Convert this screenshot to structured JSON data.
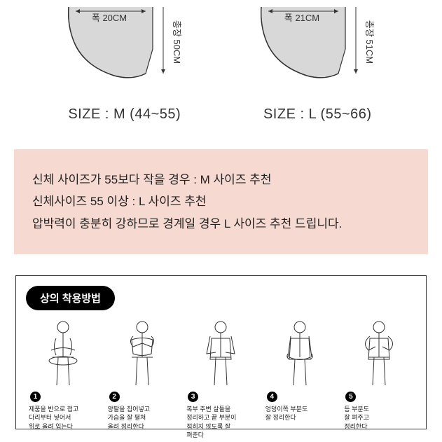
{
  "diagrams": {
    "left": {
      "width_label": "폭 20CM",
      "length_label": "총장 50CM",
      "size_text": "SIZE : M (44~55)"
    },
    "right": {
      "width_label": "폭 21CM",
      "length_label": "총장 51CM",
      "size_text": "SIZE : L (55~66)"
    },
    "stroke_color": "#333333",
    "fill_color": "#d8d8d8",
    "label_fontsize": 13
  },
  "recommendation": {
    "line1": "신체 사이즈가 55보다 작을 경우 : M 사이즈 추천",
    "line2": "신체사이즈 55 이상 : L 사이즈 추천",
    "line3": "압박력이 충분히 강하므로 경계일 경우 L 사이즈 추천 드립니다.",
    "bg_color": "#f6d9d1",
    "text_color": "#222222"
  },
  "instructions": {
    "header": "상의 착용방법",
    "steps": [
      {
        "num": "1",
        "caption": "제품을 반으로 접고\n다리부터 넣어서\n위로 올려 입는다"
      },
      {
        "num": "2",
        "caption": "양팔을 집어넣고\n가슴을 잘 펼쳐\n올려 정리한다"
      },
      {
        "num": "3",
        "caption": "복부 주변 살들을\n정리하고 끝 부분이\n접히지 않도록 잘\n펴준다"
      },
      {
        "num": "4",
        "caption": "엉덩이쪽 부분도\n잘 정리한다"
      },
      {
        "num": "5",
        "caption": "등 부분도\n잘 펴주고\n정리한다"
      }
    ],
    "header_bg": "#000000",
    "header_color": "#ffffff",
    "border_color": "#333333"
  }
}
